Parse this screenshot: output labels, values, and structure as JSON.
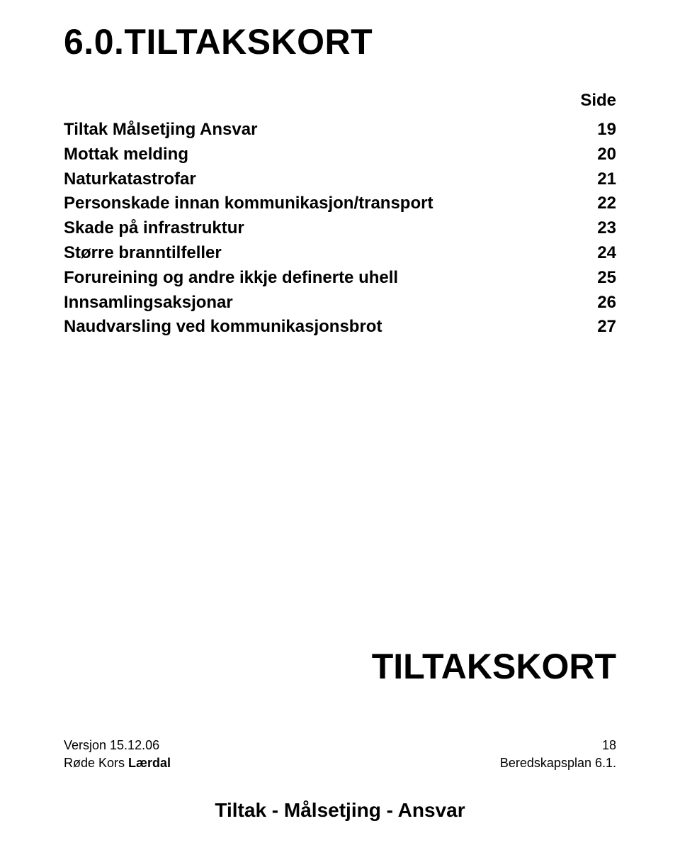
{
  "title": "6.0.TILTAKSKORT",
  "side_label": "Side",
  "toc": [
    {
      "label": "Tiltak Målsetjing Ansvar",
      "page": "19"
    },
    {
      "label": "Mottak melding",
      "page": "20"
    },
    {
      "label": "Naturkatastrofar",
      "page": "21"
    },
    {
      "label": "Personskade innan kommunikasjon/transport",
      "page": "22"
    },
    {
      "label": "Skade på infrastruktur",
      "page": "23"
    },
    {
      "label": "Større branntilfeller",
      "page": "24"
    },
    {
      "label": "Forureining og andre ikkje definerte uhell",
      "page": "25"
    },
    {
      "label": "Innsamlingsaksjonar",
      "page": "26"
    },
    {
      "label": "Naudvarsling ved kommunikasjonsbrot",
      "page": "27"
    }
  ],
  "big_title": "TILTAKSKORT",
  "footer": {
    "version": "Versjon 15.12.06",
    "page_number": "18",
    "org_prefix": "Røde Kors ",
    "org_bold": "Lærdal",
    "plan": "Beredskapsplan 6.1."
  },
  "subtitle": "Tiltak -  Målsetjing - Ansvar"
}
